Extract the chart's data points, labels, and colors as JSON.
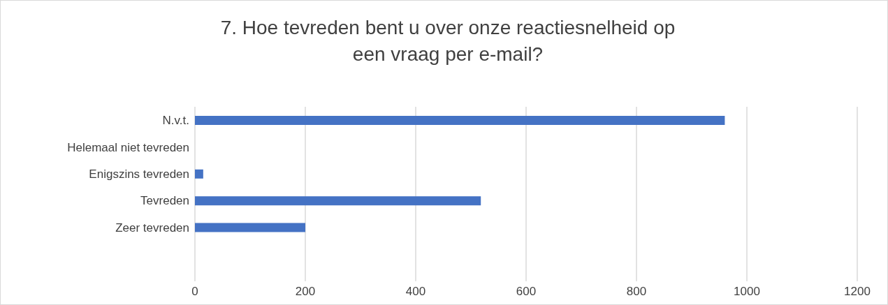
{
  "chart_data": {
    "type": "bar",
    "orientation": "horizontal",
    "title": "7. Hoe tevreden bent u over onze reactiesnelheid op een vraag per e-mail?",
    "categories": [
      "N.v.t.",
      "Helemaal niet tevreden",
      "Enigszins tevreden",
      "Tevreden",
      "Zeer tevreden"
    ],
    "values": [
      960,
      0,
      15,
      518,
      200
    ],
    "color": "#4472c4",
    "xlim": [
      0,
      1200
    ],
    "xticks": [
      0,
      200,
      400,
      600,
      800,
      1000,
      1200
    ],
    "grid": "x"
  }
}
